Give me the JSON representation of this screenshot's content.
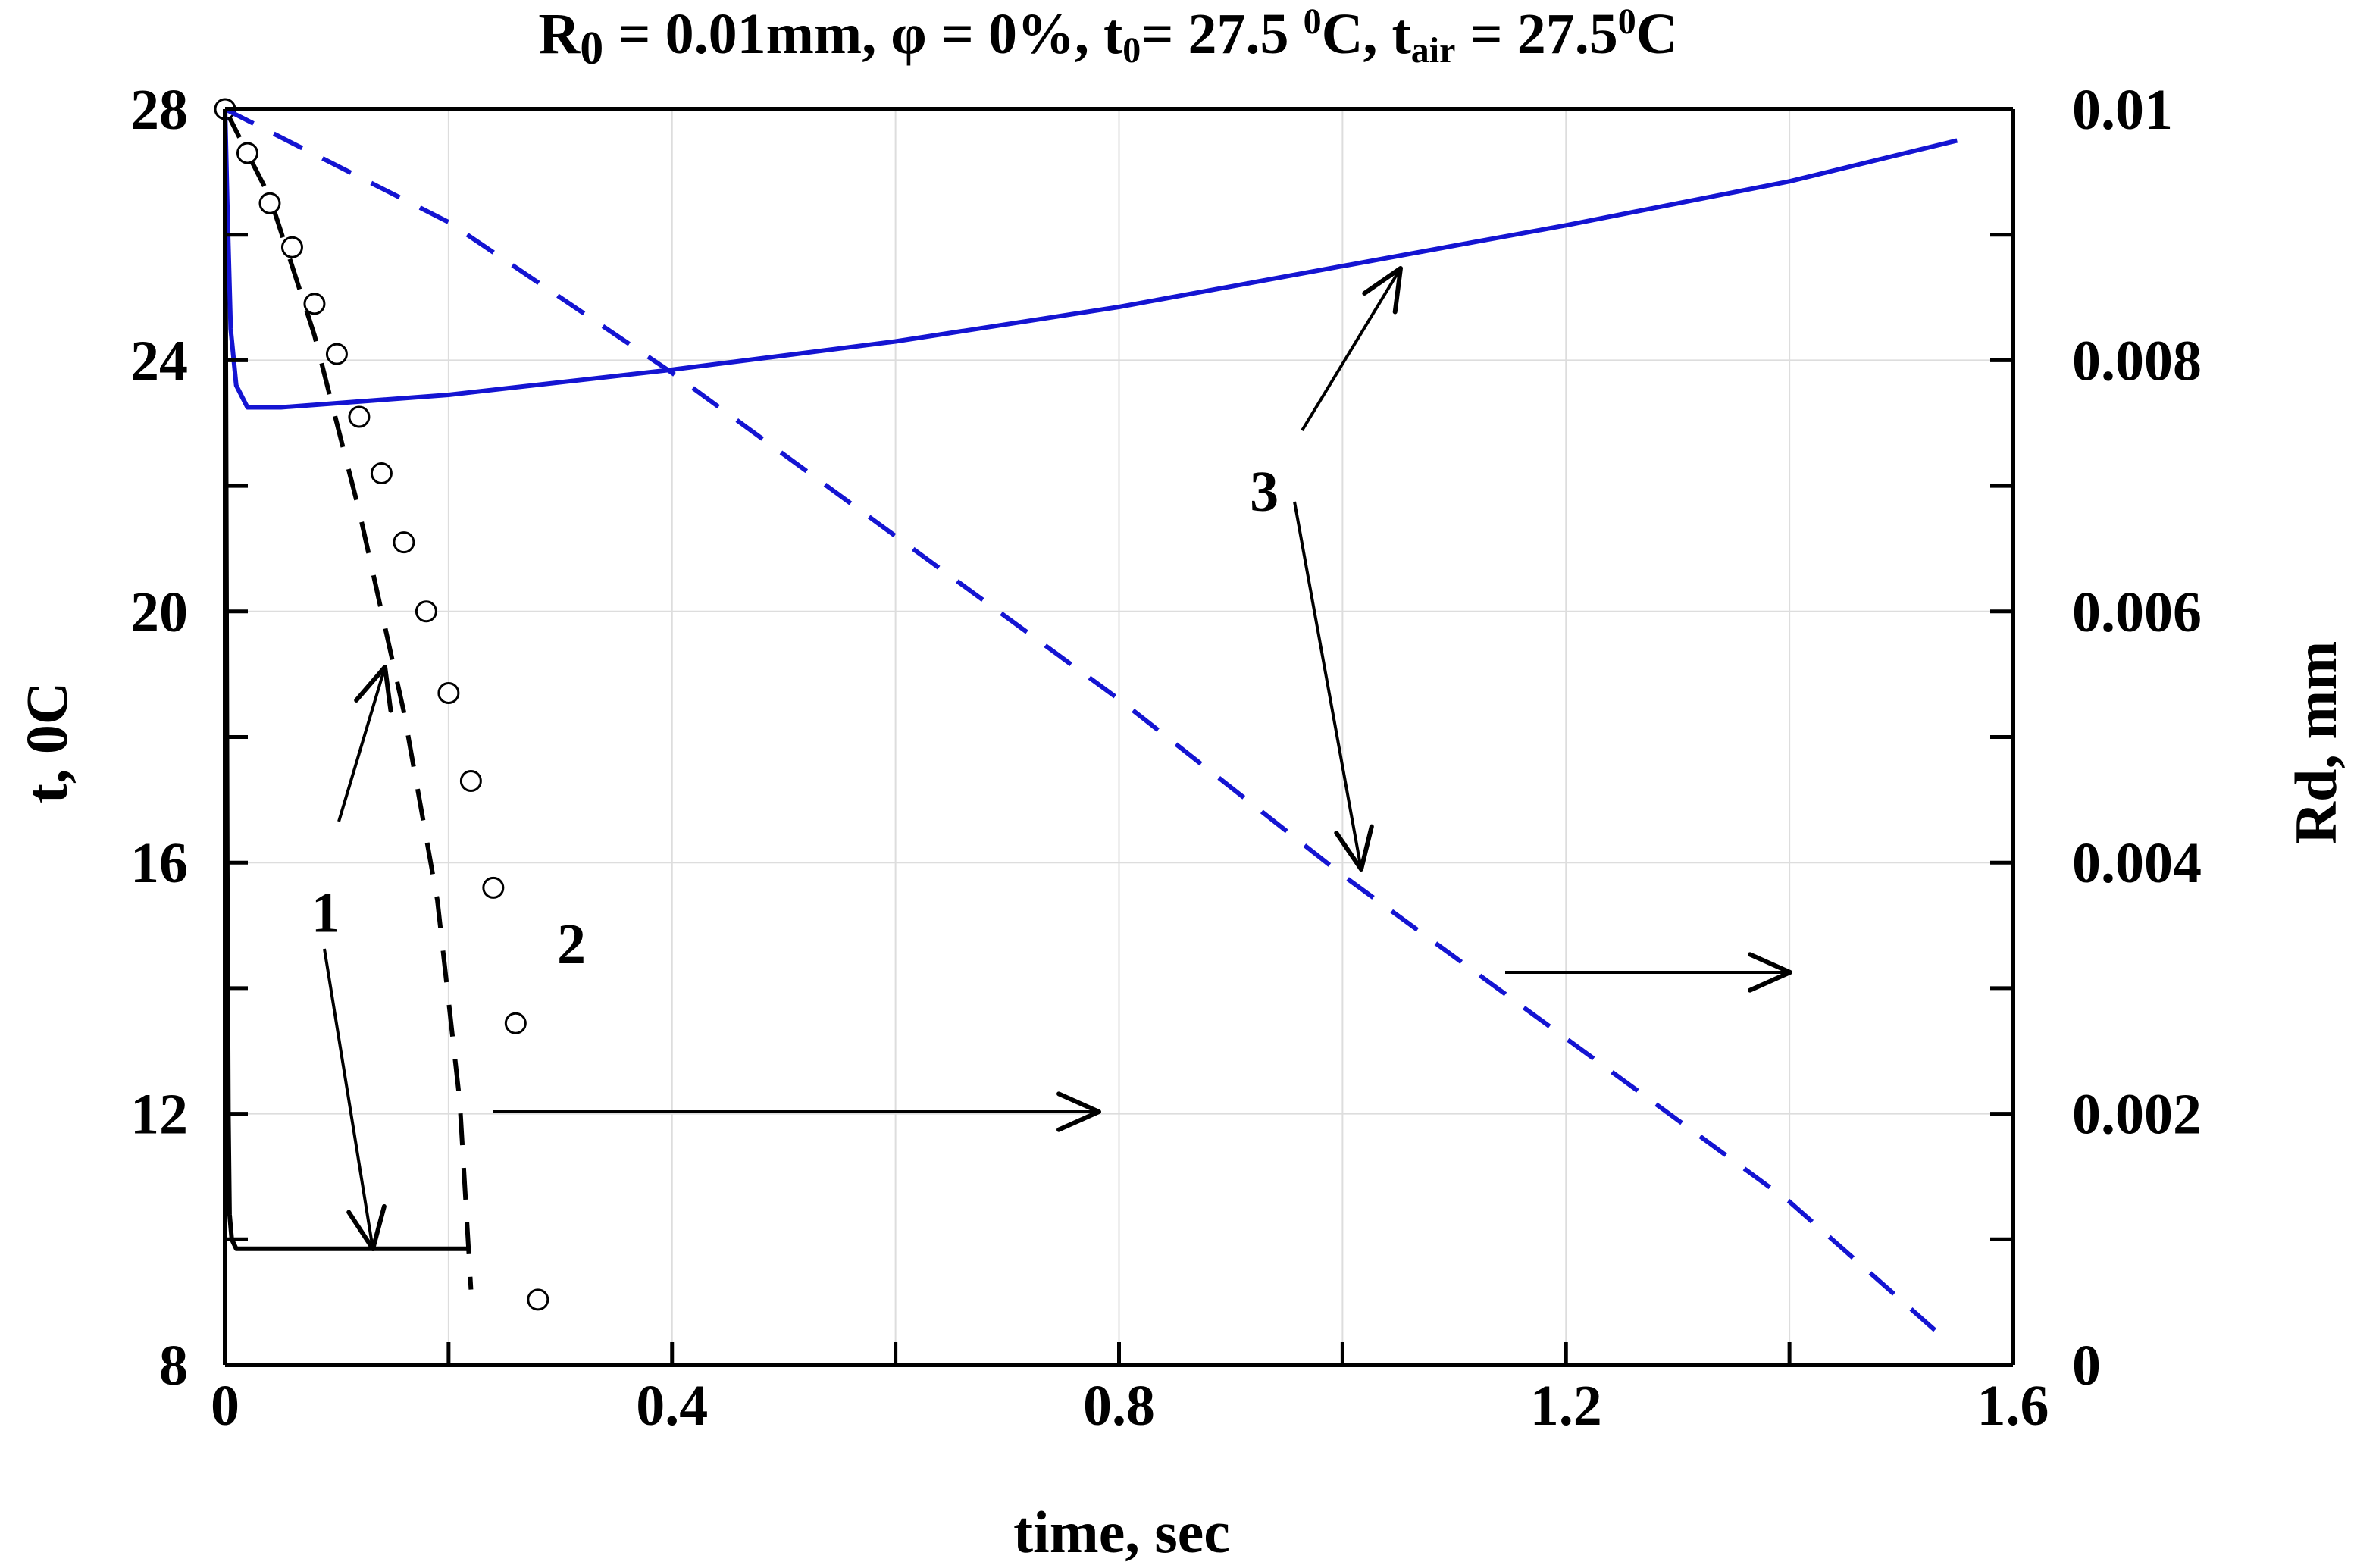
{
  "chart_data": {
    "type": "line",
    "title": {
      "parts": [
        {
          "text": "R",
          "style": "normal"
        },
        {
          "text": "0",
          "style": "sub-big"
        },
        {
          "text": " = 0.01mm, φ = 0%, t",
          "style": "normal"
        },
        {
          "text": "0",
          "style": "sub"
        },
        {
          "text": "= 27.5 ",
          "style": "normal"
        },
        {
          "text": "0",
          "style": "sup"
        },
        {
          "text": "C, t",
          "style": "normal"
        },
        {
          "text": "air",
          "style": "sub"
        },
        {
          "text": " = 27.5",
          "style": "normal"
        },
        {
          "text": "0",
          "style": "sup"
        },
        {
          "text": "C",
          "style": "normal"
        }
      ]
    },
    "xlabel": "time, sec",
    "ylabel_left": "t, 0C",
    "ylabel_right": "Rd, mm",
    "xlim": [
      0,
      1.6
    ],
    "ylim_left": [
      8,
      28
    ],
    "ylim_right": [
      0,
      0.01
    ],
    "grid": true,
    "x_ticks": [
      {
        "value": 0,
        "label": "0"
      },
      {
        "value": 0.4,
        "label": "0.4"
      },
      {
        "value": 0.8,
        "label": "0.8"
      },
      {
        "value": 1.2,
        "label": "1.2"
      },
      {
        "value": 1.6,
        "label": "1.6"
      }
    ],
    "y_left_ticks": [
      {
        "value": 8,
        "label": "8"
      },
      {
        "value": 12,
        "label": "12"
      },
      {
        "value": 16,
        "label": "16"
      },
      {
        "value": 20,
        "label": "20"
      },
      {
        "value": 24,
        "label": "24"
      },
      {
        "value": 28,
        "label": "28"
      }
    ],
    "y_right_ticks": [
      {
        "value": 0,
        "label": "0"
      },
      {
        "value": 0.002,
        "label": "0.002"
      },
      {
        "value": 0.004,
        "label": "0.004"
      },
      {
        "value": 0.006,
        "label": "0.006"
      },
      {
        "value": 0.008,
        "label": "0.008"
      },
      {
        "value": 0.01,
        "label": "0.01"
      }
    ],
    "series": [
      {
        "label": "1",
        "quantity": "temperature",
        "axis": "left",
        "color": "#000000",
        "style": "solid",
        "points": [
          [
            0,
            28
          ],
          [
            0.001,
            22
          ],
          [
            0.002,
            16
          ],
          [
            0.003,
            12
          ],
          [
            0.004,
            10.4
          ],
          [
            0.006,
            10
          ],
          [
            0.01,
            9.85
          ],
          [
            0.05,
            9.85
          ],
          [
            0.15,
            9.85
          ],
          [
            0.22,
            9.85
          ]
        ]
      },
      {
        "label": "1",
        "quantity": "radius",
        "axis": "right",
        "color": "#000000",
        "style": "dashed",
        "points": [
          [
            0,
            0.01
          ],
          [
            0.04,
            0.0093
          ],
          [
            0.08,
            0.0082
          ],
          [
            0.12,
            0.0068
          ],
          [
            0.16,
            0.0052
          ],
          [
            0.19,
            0.0037
          ],
          [
            0.21,
            0.0021
          ],
          [
            0.22,
            0.0006
          ]
        ]
      },
      {
        "label": "2",
        "quantity": "radius",
        "axis": "right",
        "color": "#000000",
        "style": "markers",
        "points": [
          [
            0,
            0.01
          ],
          [
            0.02,
            0.00965
          ],
          [
            0.04,
            0.00925
          ],
          [
            0.06,
            0.0089
          ],
          [
            0.08,
            0.00845
          ],
          [
            0.1,
            0.00805
          ],
          [
            0.12,
            0.00755
          ],
          [
            0.14,
            0.0071
          ],
          [
            0.16,
            0.00655
          ],
          [
            0.18,
            0.006
          ],
          [
            0.2,
            0.00535
          ],
          [
            0.22,
            0.00465
          ],
          [
            0.24,
            0.0038
          ],
          [
            0.26,
            0.00272
          ],
          [
            0.28,
            0.00052
          ]
        ]
      },
      {
        "label": "3",
        "quantity": "temperature",
        "axis": "left",
        "color": "#1414d2",
        "style": "solid",
        "points": [
          [
            0,
            28
          ],
          [
            0.002,
            26.5
          ],
          [
            0.005,
            24.5
          ],
          [
            0.01,
            23.6
          ],
          [
            0.02,
            23.25
          ],
          [
            0.05,
            23.25
          ],
          [
            0.2,
            23.45
          ],
          [
            0.4,
            23.85
          ],
          [
            0.6,
            24.3
          ],
          [
            0.8,
            24.85
          ],
          [
            1.0,
            25.5
          ],
          [
            1.2,
            26.15
          ],
          [
            1.4,
            26.85
          ],
          [
            1.55,
            27.5
          ]
        ]
      },
      {
        "label": "3",
        "quantity": "radius",
        "axis": "right",
        "color": "#1414d2",
        "style": "dashed",
        "points": [
          [
            0,
            0.01
          ],
          [
            0.2,
            0.0091
          ],
          [
            0.4,
            0.0079
          ],
          [
            0.6,
            0.0066
          ],
          [
            0.8,
            0.0053
          ],
          [
            1.0,
            0.0039
          ],
          [
            1.2,
            0.0026
          ],
          [
            1.4,
            0.0013
          ],
          [
            1.54,
            0.0002
          ]
        ]
      }
    ],
    "annotations": [
      {
        "text": "1",
        "x": 0.09,
        "y_left": 14.9
      },
      {
        "text": "2",
        "x": 0.31,
        "y_left": 14.4
      },
      {
        "text": "3",
        "x": 0.93,
        "y_left": 21.6
      }
    ]
  }
}
